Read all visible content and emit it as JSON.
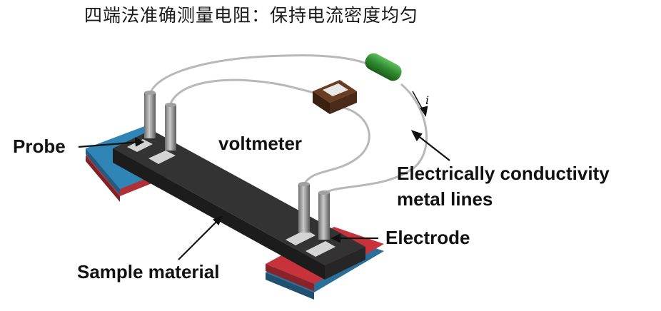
{
  "title": "四端法准确测量电阻：保持电流密度均匀",
  "labels": {
    "probe": "Probe",
    "voltmeter": "voltmeter",
    "lines_1": "Electrically conductivity",
    "lines_2": "metal lines",
    "electrode": "Electrode",
    "sample": "Sample material",
    "current": "i"
  },
  "colors": {
    "sample": "#2f2f2f",
    "electrode_strip": "#d4d4d4",
    "base_blue": "#2f86b6",
    "base_red": "#c8333b",
    "resistor": "#2f8a2f",
    "voltmeter_body": "#4a2a18",
    "wire": "#b8b8b8"
  }
}
